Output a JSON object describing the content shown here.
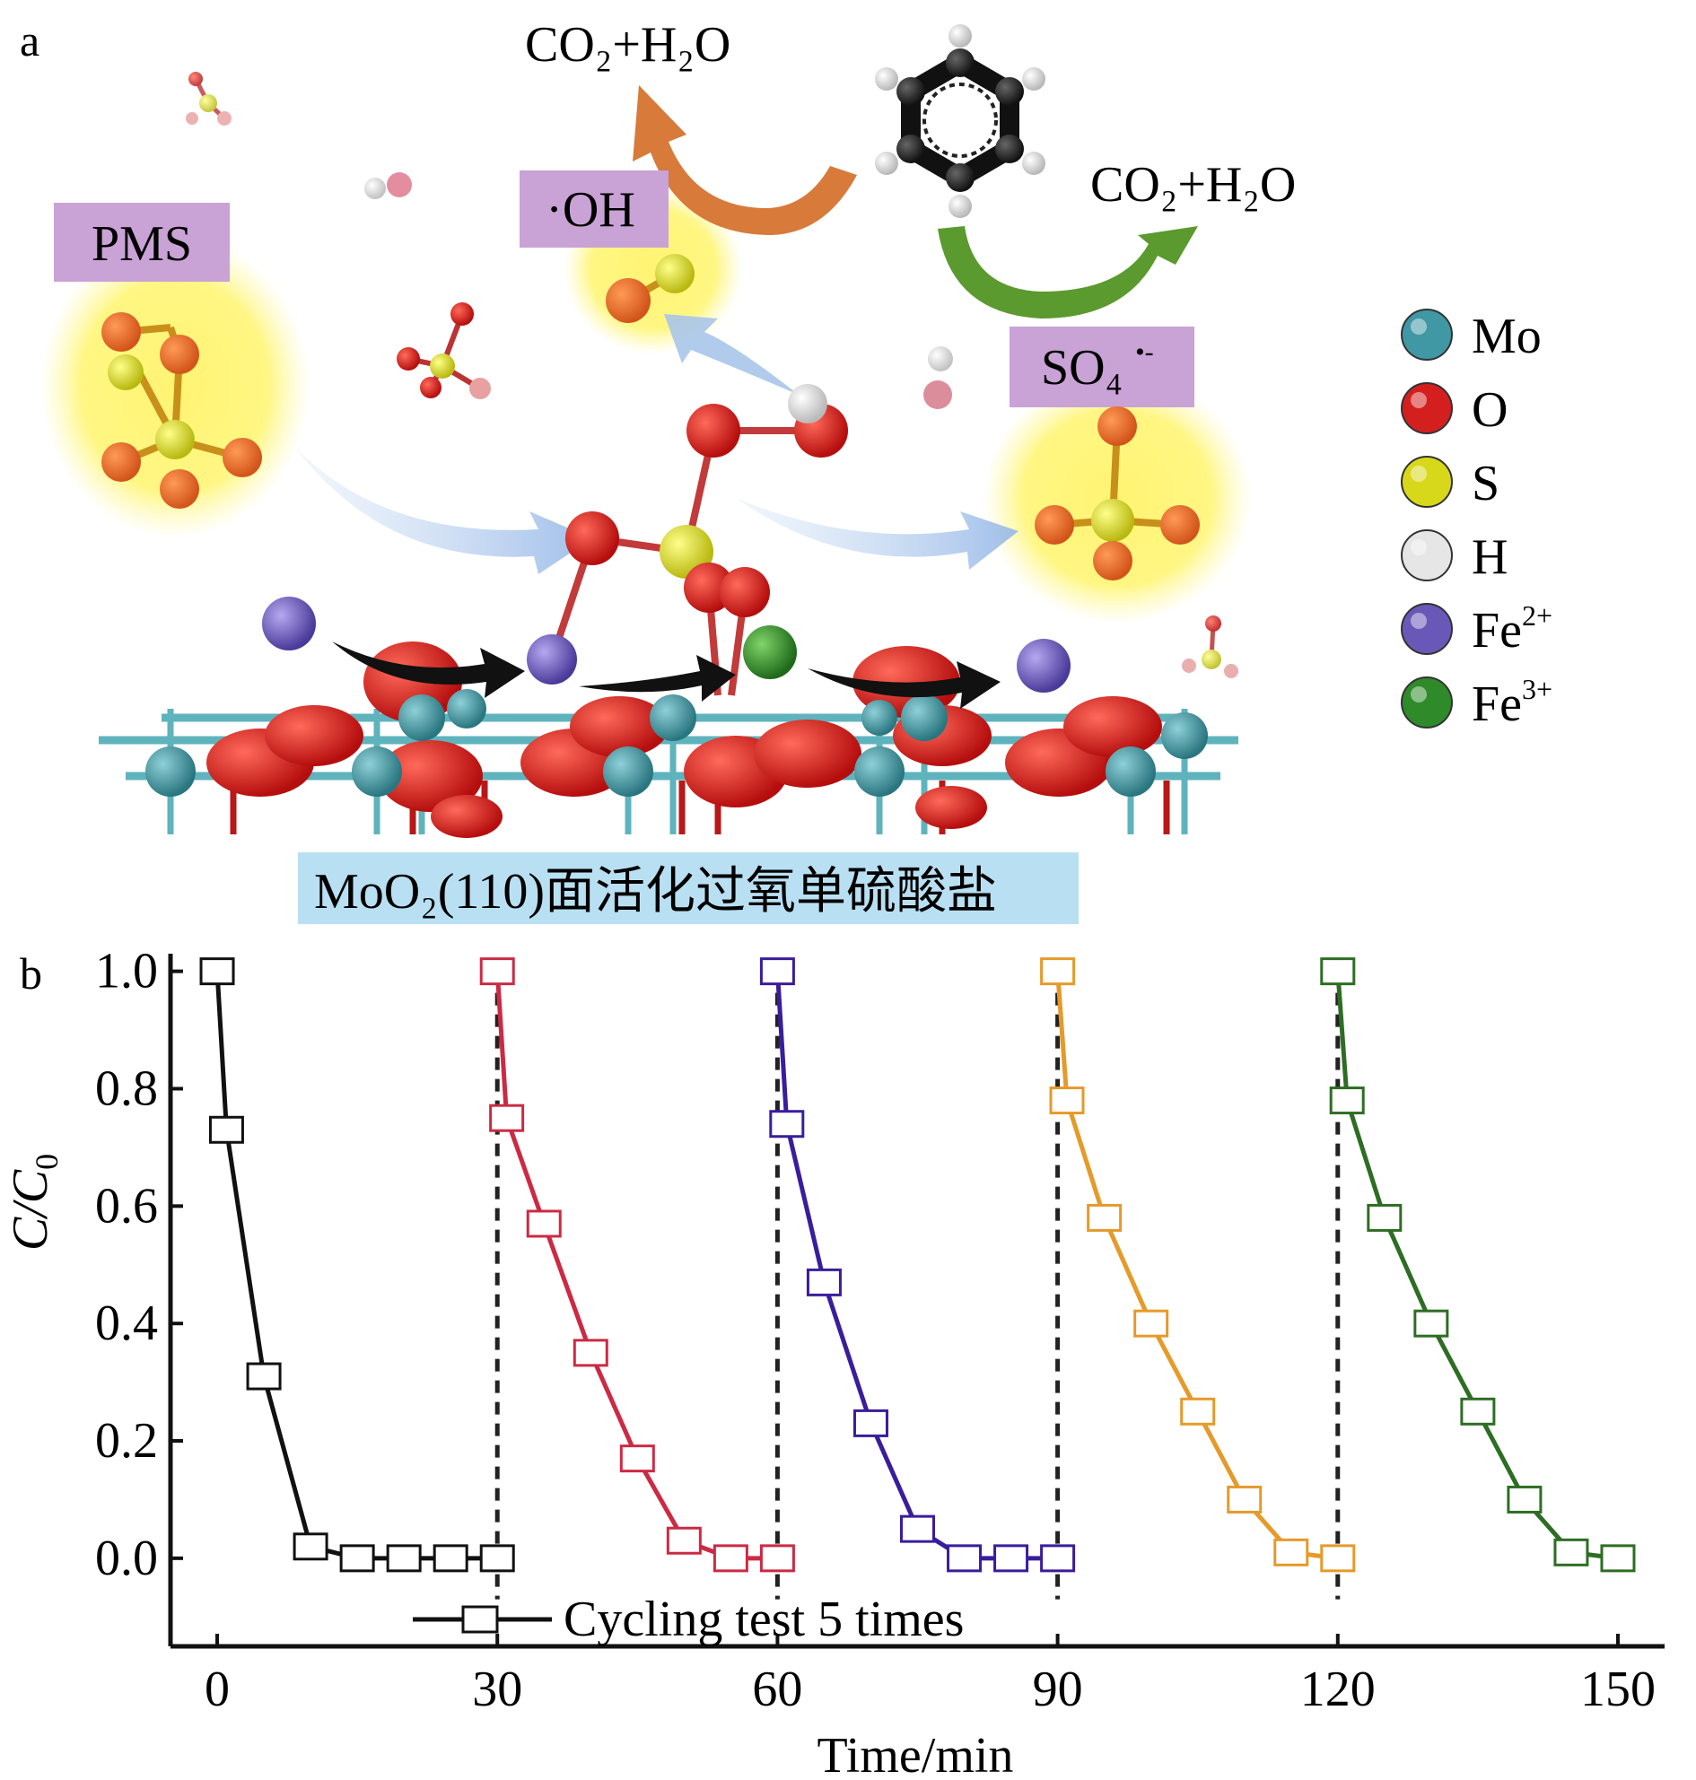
{
  "panel_a": {
    "panel_label": "a",
    "product_top": "CO₂+H₂O",
    "product_right": "CO₂+H₂O",
    "pms_label": "PMS",
    "oh_label": "·OH",
    "so4_label": "SO₄",
    "so4_charge": "•-",
    "surface_caption": "MoO₂(110)面活化过氧单硫酸盐",
    "legend": [
      {
        "label": "Mo",
        "sup": "",
        "color": "#3f98a4",
        "icon": "mo-atom-icon"
      },
      {
        "label": "O",
        "sup": "",
        "color": "#d41f1f",
        "icon": "o-atom-icon"
      },
      {
        "label": "S",
        "sup": "",
        "color": "#d8d81a",
        "icon": "s-atom-icon"
      },
      {
        "label": "H",
        "sup": "",
        "color": "#e6e6e6",
        "icon": "h-atom-icon"
      },
      {
        "label": "Fe",
        "sup": "2+",
        "color": "#6a58b8",
        "icon": "fe2-atom-icon"
      },
      {
        "label": "Fe",
        "sup": "3+",
        "color": "#2f8a2a",
        "icon": "fe3-atom-icon"
      }
    ]
  },
  "panel_b": {
    "panel_label": "b",
    "legend_label": "Cycling test 5 times"
  },
  "chart_data": {
    "type": "line",
    "xlabel": "Time/min",
    "ylabel": "C/C0",
    "ylabel_main": "C/C",
    "ylabel_sub": "0",
    "xlim": [
      -5,
      155
    ],
    "ylim": [
      -0.15,
      1.03
    ],
    "xticks": [
      0,
      30,
      60,
      90,
      120,
      150
    ],
    "yticks": [
      0.0,
      0.2,
      0.4,
      0.6,
      0.8,
      1.0
    ],
    "ytick_labels": [
      "0.0",
      "0.2",
      "0.4",
      "0.6",
      "0.8",
      "1.0"
    ],
    "cycle_markers_x": [
      30,
      60,
      90,
      120
    ],
    "grid": false,
    "legend_position": "bottom-center",
    "series": [
      {
        "color": "#111111",
        "x": [
          0,
          1,
          5,
          10,
          15,
          20,
          25,
          30
        ],
        "y": [
          1.0,
          0.73,
          0.31,
          0.02,
          0.0,
          0.0,
          0.0,
          0.0
        ]
      },
      {
        "color": "#cc2a44",
        "x": [
          30,
          31,
          35,
          40,
          45,
          50,
          55,
          60
        ],
        "y": [
          1.0,
          0.75,
          0.57,
          0.35,
          0.17,
          0.03,
          0.0,
          0.0
        ]
      },
      {
        "color": "#3a1d9c",
        "x": [
          60,
          61,
          65,
          70,
          75,
          80,
          85,
          90
        ],
        "y": [
          1.0,
          0.74,
          0.47,
          0.23,
          0.05,
          0.0,
          0.0,
          0.0
        ]
      },
      {
        "color": "#e59a2a",
        "x": [
          90,
          91,
          95,
          100,
          105,
          110,
          115,
          120
        ],
        "y": [
          1.0,
          0.78,
          0.58,
          0.4,
          0.25,
          0.1,
          0.01,
          0.0
        ]
      },
      {
        "color": "#2e6d24",
        "x": [
          120,
          121,
          125,
          130,
          135,
          140,
          145,
          150
        ],
        "y": [
          1.0,
          0.78,
          0.58,
          0.4,
          0.25,
          0.1,
          0.01,
          0.0
        ]
      }
    ]
  }
}
